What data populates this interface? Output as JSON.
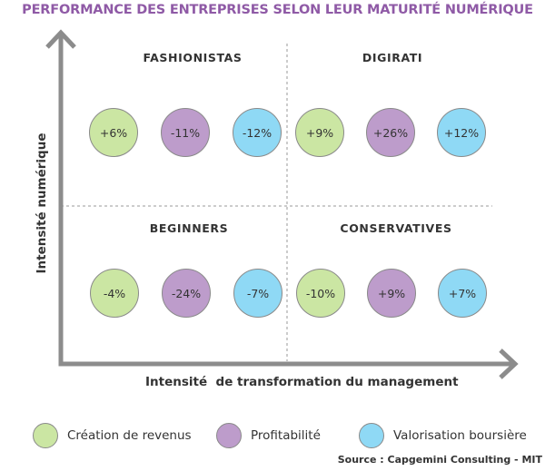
{
  "title": "PERFORMANCE DES ENTREPRISES SELON LEUR MATURITÉ NUMÉRIQUE",
  "axes": {
    "x_label": "Intensité  de transformation du management",
    "y_label": "Intensité numérique"
  },
  "quadrants": [
    {
      "name": "FASHIONISTAS",
      "values": [
        "+6%",
        "-11%",
        "-12%"
      ]
    },
    {
      "name": "DIGIRATI",
      "values": [
        "+9%",
        "+26%",
        "+12%"
      ]
    },
    {
      "name": "BEGINNERS",
      "values": [
        "-4%",
        "-24%",
        "-7%"
      ]
    },
    {
      "name": "CONSERVATIVES",
      "values": [
        "-10%",
        "+9%",
        "+7%"
      ]
    }
  ],
  "legend": [
    {
      "label": "Création de revenus",
      "color": "#cbe6a3"
    },
    {
      "label": "Profitabilité",
      "color": "#bd9ccb"
    },
    {
      "label": "Valorisation boursière",
      "color": "#8fd9f5"
    }
  ],
  "source": "Source : Capgemini Consulting - MIT",
  "colors": {
    "title": "#8f5aa6",
    "axis": "#8c8c8c",
    "revenue": "#cbe6a3",
    "profitability": "#bd9ccb",
    "valuation": "#8fd9f5"
  }
}
